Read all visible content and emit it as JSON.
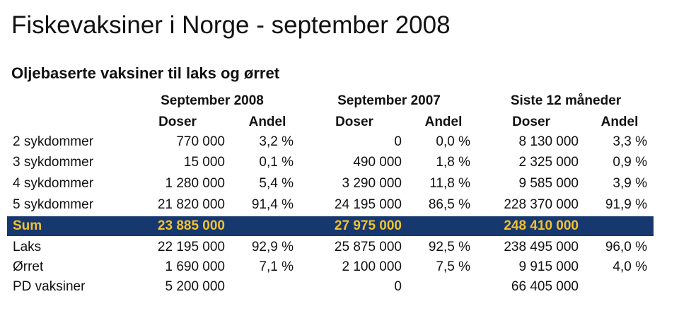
{
  "title": "Fiskevaksiner i Norge - september 2008",
  "table": {
    "caption": "Oljebaserte vaksiner til laks og ørret",
    "groups": [
      "September 2008",
      "September 2007",
      "Siste 12 måneder"
    ],
    "columns": [
      "Doser",
      "Andel",
      "Doser",
      "Andel",
      "Doser",
      "Andel"
    ],
    "rows": [
      [
        "2 sykdommer",
        "770 000",
        "3,2 %",
        "0",
        "0,0 %",
        "8 130 000",
        "3,3 %"
      ],
      [
        "3 sykdommer",
        "15 000",
        "0,1 %",
        "490 000",
        "1,8 %",
        "2 325 000",
        "0,9 %"
      ],
      [
        "4 sykdommer",
        "1 280 000",
        "5,4 %",
        "3 290 000",
        "11,8 %",
        "9 585 000",
        "3,9 %"
      ],
      [
        "5 sykdommer",
        "21 820 000",
        "91,4 %",
        "24 195 000",
        "86,5 %",
        "228 370 000",
        "91,9 %"
      ],
      [
        "Sum",
        "23 885 000",
        null,
        "27 975 000",
        null,
        "248 410 000",
        null
      ],
      [
        "Laks",
        "22 195 000",
        "92,9 %",
        "25 875 000",
        "92,5 %",
        "238 495 000",
        "96,0 %"
      ],
      [
        "Ørret",
        "1 690 000",
        "7,1 %",
        "2 100 000",
        "7,5 %",
        "9 915 000",
        "4,0 %"
      ],
      [
        "PD vaksiner",
        "5 200 000",
        null,
        "0",
        null,
        "66 405 000",
        null
      ]
    ]
  }
}
